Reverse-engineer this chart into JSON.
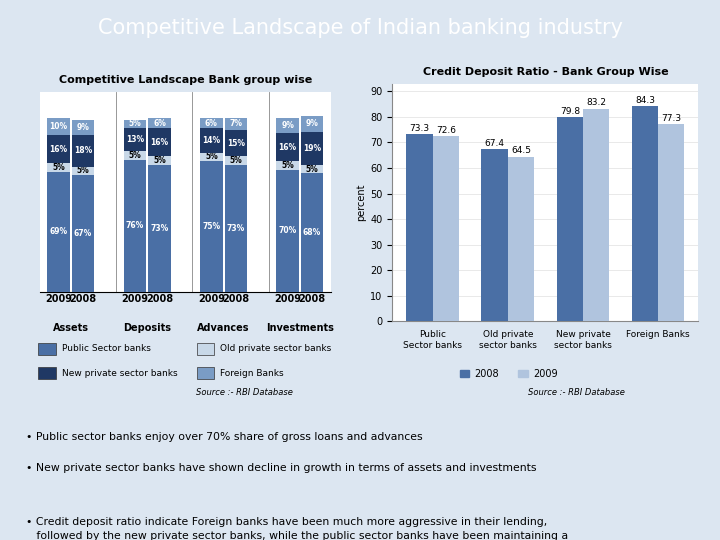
{
  "title": "Competitive Landscape of Indian banking industry",
  "title_bg": "#1f3864",
  "title_color": "white",
  "left_chart_title": "Competitive Landscape Bank group wise",
  "right_chart_title": "Credit Deposit Ratio - Bank Group Wise",
  "stacked_groups": [
    "Assets",
    "Deposits",
    "Advances",
    "Investments"
  ],
  "stacked_years": [
    "2009",
    "2008"
  ],
  "stacked_data": {
    "Assets": {
      "2009": {
        "public": 69,
        "old_private": 5,
        "new_private": 16,
        "foreign": 10
      },
      "2008": {
        "public": 67,
        "old_private": 5,
        "new_private": 18,
        "foreign": 9
      }
    },
    "Deposits": {
      "2009": {
        "public": 76,
        "old_private": 5,
        "new_private": 13,
        "foreign": 5
      },
      "2008": {
        "public": 73,
        "old_private": 5,
        "new_private": 16,
        "foreign": 6
      }
    },
    "Advances": {
      "2009": {
        "public": 75,
        "old_private": 5,
        "new_private": 14,
        "foreign": 6
      },
      "2008": {
        "public": 73,
        "old_private": 5,
        "new_private": 15,
        "foreign": 7
      }
    },
    "Investments": {
      "2009": {
        "public": 70,
        "old_private": 5,
        "new_private": 16,
        "foreign": 9
      },
      "2008": {
        "public": 68,
        "old_private": 5,
        "new_private": 19,
        "foreign": 9
      }
    }
  },
  "colors": {
    "public": "#4a6fa5",
    "old_private": "#c8d8e8",
    "new_private": "#1f3864",
    "foreign": "#7a9cc5"
  },
  "color_text_white": [
    "public",
    "new_private",
    "foreign"
  ],
  "color_text_black": [
    "old_private"
  ],
  "cd_categories": [
    "Public\nSector banks",
    "Old private\nsector banks",
    "New private\nsector banks",
    "Foreign Banks"
  ],
  "cd_2008": [
    73.3,
    67.4,
    79.8,
    84.3
  ],
  "cd_2009": [
    72.6,
    64.5,
    83.2,
    77.3
  ],
  "cd_color_2008": "#4a6fa5",
  "cd_color_2009": "#b0c4de",
  "source_text": "Source :- RBI Database",
  "bullet_points": [
    "Public sector banks enjoy over 70% share of gross loans and advances",
    "New private sector banks have shown decline in growth in terms of assets and investments",
    "Credit deposit ratio indicate Foreign banks have been much more aggressive in their lending,\n   followed by the new private sector banks, while the public sector banks have been maintaining a\n   mediocre path."
  ],
  "bg_color": "#dce6f1",
  "panel_bg": "white",
  "border_color": "#7a9cc5"
}
